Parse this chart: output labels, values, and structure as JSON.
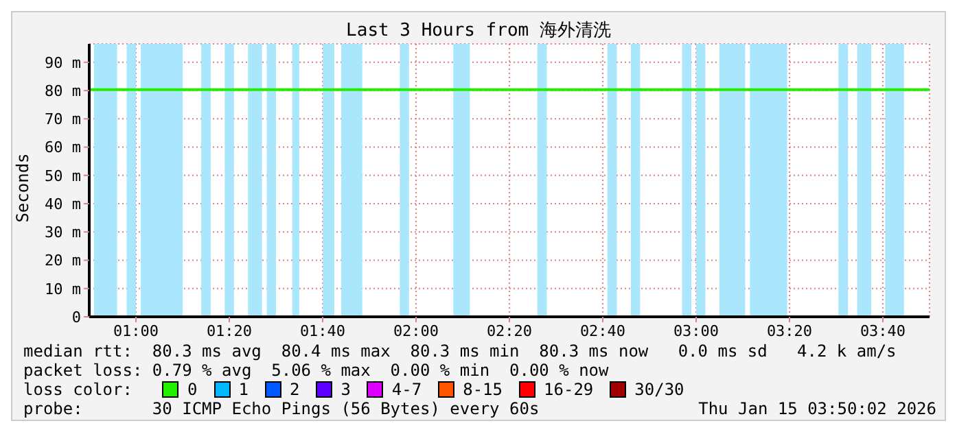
{
  "chart_data": {
    "type": "line",
    "title": "Last 3 Hours from 海外清洗",
    "ylabel": "Seconds",
    "xlim": [
      0.8333,
      3.8333
    ],
    "xticks": [
      {
        "value": 1,
        "label": "01:00"
      },
      {
        "value": 1.3333,
        "label": "01:20"
      },
      {
        "value": 1.6667,
        "label": "01:40"
      },
      {
        "value": 2,
        "label": "02:00"
      },
      {
        "value": 2.3333,
        "label": "02:20"
      },
      {
        "value": 2.6667,
        "label": "02:40"
      },
      {
        "value": 3,
        "label": "03:00"
      },
      {
        "value": 3.3333,
        "label": "03:20"
      },
      {
        "value": 3.6667,
        "label": "03:40"
      }
    ],
    "ylim": [
      0,
      96.5
    ],
    "yticks": [
      {
        "value": 0,
        "label": "0"
      },
      {
        "value": 10,
        "label": "10 m"
      },
      {
        "value": 20,
        "label": "20 m"
      },
      {
        "value": 30,
        "label": "30 m"
      },
      {
        "value": 40,
        "label": "40 m"
      },
      {
        "value": 50,
        "label": "50 m"
      },
      {
        "value": 60,
        "label": "60 m"
      },
      {
        "value": 70,
        "label": "70 m"
      },
      {
        "value": 80,
        "label": "80 m"
      },
      {
        "value": 90,
        "label": "90 m"
      }
    ],
    "grid": true,
    "legend": "bottom",
    "legend_title": "loss color:",
    "series": [
      {
        "name": "0",
        "color": "#22ee00",
        "x": [
          0.8333,
          3.8333
        ],
        "values": [
          80.3,
          80.3
        ]
      },
      {
        "name": "1",
        "color": "#00b8ff"
      },
      {
        "name": "2",
        "color": "#0059ff"
      },
      {
        "name": "3",
        "color": "#5e00ff"
      },
      {
        "name": "4-7",
        "color": "#dd00ff"
      },
      {
        "name": "8-15",
        "color": "#ff5500"
      },
      {
        "name": "16-29",
        "color": "#ff0000"
      },
      {
        "name": "30/30",
        "color": "#a10000"
      }
    ],
    "bands": [
      {
        "axis": "x",
        "from": 0.85,
        "to": 0.933,
        "color": "#aae6fc"
      },
      {
        "axis": "x",
        "from": 0.967,
        "to": 1.0,
        "color": "#aae6fc"
      },
      {
        "axis": "x",
        "from": 1.017,
        "to": 1.167,
        "color": "#aae6fc"
      },
      {
        "axis": "x",
        "from": 1.233,
        "to": 1.267,
        "color": "#aae6fc"
      },
      {
        "axis": "x",
        "from": 1.317,
        "to": 1.35,
        "color": "#aae6fc"
      },
      {
        "axis": "x",
        "from": 1.4,
        "to": 1.45,
        "color": "#aae6fc"
      },
      {
        "axis": "x",
        "from": 1.467,
        "to": 1.5,
        "color": "#aae6fc"
      },
      {
        "axis": "x",
        "from": 1.558,
        "to": 1.583,
        "color": "#aae6fc"
      },
      {
        "axis": "x",
        "from": 1.667,
        "to": 1.708,
        "color": "#aae6fc"
      },
      {
        "axis": "x",
        "from": 1.733,
        "to": 1.808,
        "color": "#aae6fc"
      },
      {
        "axis": "x",
        "from": 1.942,
        "to": 1.975,
        "color": "#aae6fc"
      },
      {
        "axis": "x",
        "from": 2.133,
        "to": 2.192,
        "color": "#aae6fc"
      },
      {
        "axis": "x",
        "from": 2.433,
        "to": 2.467,
        "color": "#aae6fc"
      },
      {
        "axis": "x",
        "from": 2.683,
        "to": 2.717,
        "color": "#aae6fc"
      },
      {
        "axis": "x",
        "from": 2.767,
        "to": 2.8,
        "color": "#aae6fc"
      },
      {
        "axis": "x",
        "from": 2.95,
        "to": 2.983,
        "color": "#aae6fc"
      },
      {
        "axis": "x",
        "from": 3.0,
        "to": 3.033,
        "color": "#aae6fc"
      },
      {
        "axis": "x",
        "from": 3.083,
        "to": 3.175,
        "color": "#aae6fc"
      },
      {
        "axis": "x",
        "from": 3.192,
        "to": 3.325,
        "color": "#aae6fc"
      },
      {
        "axis": "x",
        "from": 3.508,
        "to": 3.542,
        "color": "#aae6fc"
      },
      {
        "axis": "x",
        "from": 3.575,
        "to": 3.625,
        "color": "#aae6fc"
      },
      {
        "axis": "x",
        "from": 3.675,
        "to": 3.742,
        "color": "#aae6fc"
      }
    ],
    "annotations": [
      "median rtt:  80.3 ms avg  80.4 ms max  80.3 ms min  80.3 ms now   0.0 ms sd   4.2 k am/s",
      "packet loss: 0.79 % avg  5.06 % max  0.00 % min  0.00 % now",
      "probe:       30 ICMP Echo Pings (56 Bytes) every 60s",
      "Thu Jan 15 03:50:02 2026"
    ]
  }
}
